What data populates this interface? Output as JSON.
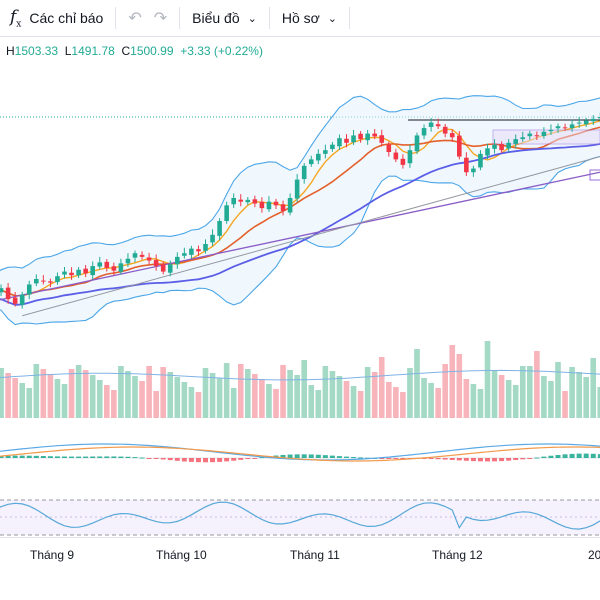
{
  "toolbar": {
    "indicators_label": "Các chỉ báo",
    "chart_type_label": "Biểu đồ",
    "profile_label": "Hồ sơ",
    "icons": [
      "fx-icon",
      "undo-icon",
      "redo-icon",
      "chevron-down-icon"
    ]
  },
  "ohlc": {
    "h_label": "H",
    "h_value": "1503.33",
    "l_label": "L",
    "l_value": "1491.78",
    "c_label": "C",
    "c_value": "1500.99",
    "change": "+3.33 (+0.22%)"
  },
  "colors": {
    "up": "#22ab94",
    "down": "#f23645",
    "up_vol": "#a3d9c5",
    "down_vol": "#f7b4bb",
    "bb": "#4ba6e8",
    "ma_fast": "#f5a623",
    "ma_mid": "#e4602a",
    "ma_slow": "#5b5ee6",
    "ma_long": "#8a5cc7",
    "trend": "#9598a1",
    "rsi": "#56a8d8",
    "macd": "#5aa9e6",
    "signal": "#f2994a"
  },
  "x_axis": [
    "Tháng 9",
    "Tháng 10",
    "Tháng 11",
    "Tháng 12",
    "20"
  ],
  "chart_data": {
    "type": "candlestick",
    "series": [
      {
        "name": "Price",
        "close_series": [
          1258,
          1262,
          1250,
          1245,
          1255,
          1266,
          1272,
          1270,
          1268,
          1275,
          1280,
          1276,
          1282,
          1278,
          1286,
          1290,
          1284,
          1281,
          1289,
          1294,
          1300,
          1296,
          1292,
          1286,
          1280,
          1288,
          1296,
          1300,
          1305,
          1302,
          1310,
          1320,
          1335,
          1352,
          1360,
          1356,
          1358,
          1354,
          1349,
          1356,
          1352,
          1346,
          1360,
          1380,
          1395,
          1402,
          1408,
          1412,
          1418,
          1425,
          1420,
          1428,
          1424,
          1430,
          1427,
          1420,
          1410,
          1402,
          1396,
          1412,
          1428,
          1436,
          1442,
          1438,
          1430,
          1426,
          1405,
          1388,
          1392,
          1408,
          1414,
          1418,
          1412,
          1420,
          1424,
          1426,
          1430,
          1428,
          1432,
          1434,
          1438,
          1436,
          1440,
          1442,
          1444,
          1446,
          1448,
          1450,
          1452
        ]
      },
      {
        "name": "Volume"
      },
      {
        "name": "MACD"
      },
      {
        "name": "RSI"
      }
    ],
    "x_labels": [
      "Tháng 9",
      "Tháng 10",
      "Tháng 11",
      "Tháng 12"
    ]
  }
}
